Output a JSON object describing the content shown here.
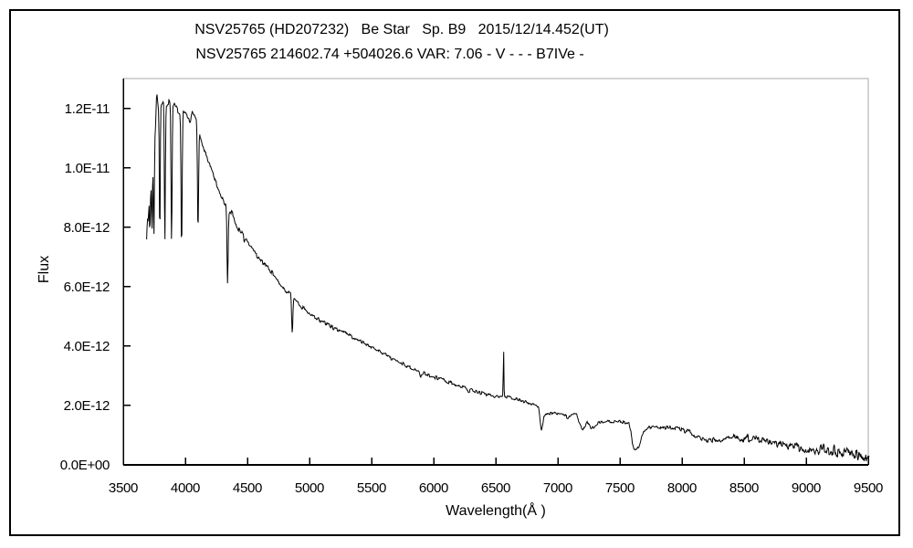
{
  "figure": {
    "title_line1": "NSV25765 (HD207232)   Be Star   Sp. B9   2015/12/14.452(UT)",
    "title_line2": "NSV25765 214602.74 +504026.6 VAR: 7.06 - V - - - B7IVe -"
  },
  "colors": {
    "background": "#ffffff",
    "axis": "#000000",
    "frame_gray": "#a8a8a8",
    "spectrum_line": "#000000",
    "outer_border": "#000000"
  },
  "chart_data": {
    "type": "line",
    "title": "NSV25765 (HD207232)   Be Star   Sp. B9   2015/12/14.452(UT)",
    "subtitle": "NSV25765 214602.74 +504026.6 VAR: 7.06 - V - - - B7IVe -",
    "xlabel": "Wavelength(Å )",
    "ylabel": "Flux",
    "grid": false,
    "legend": "none",
    "xlim": [
      3500,
      9500
    ],
    "ylim_flux": [
      0,
      1.3e-11
    ],
    "flux_unit_scale": 1e-12,
    "xticks": [
      3500,
      4000,
      4500,
      5000,
      5500,
      6000,
      6500,
      7000,
      7500,
      8000,
      8500,
      9000,
      9500
    ],
    "xtick_labels": [
      "3500",
      "4000",
      "4500",
      "5000",
      "5500",
      "6000",
      "6500",
      "7000",
      "7500",
      "8000",
      "8500",
      "9000",
      "9500"
    ],
    "yticks_flux": [
      0,
      2e-12,
      4e-12,
      6e-12,
      8e-12,
      1e-11,
      1.2e-11
    ],
    "ytick_labels": [
      "0.0E+00",
      "2.0E-12",
      "4.0E-12",
      "6.0E-12",
      "8.0E-12",
      "1.0E-11",
      "1.2E-11"
    ],
    "series": [
      {
        "name": "spectrum",
        "color": "#000000",
        "wavelength_range": [
          3688,
          9508
        ],
        "sample_step_angstrom": 4,
        "continuum_points": [
          [
            3688,
            7.6
          ],
          [
            3695,
            8.4
          ],
          [
            3702,
            8.2
          ],
          [
            3710,
            8.9
          ],
          [
            3718,
            9.1
          ],
          [
            3726,
            9.4
          ],
          [
            3736,
            9.8
          ],
          [
            3748,
            10.5
          ],
          [
            3760,
            11.4
          ],
          [
            3770,
            12.5
          ],
          [
            3783,
            12.0
          ],
          [
            3796,
            12.1
          ],
          [
            3810,
            12.25
          ],
          [
            3824,
            12.3
          ],
          [
            3838,
            12.1
          ],
          [
            3852,
            12.15
          ],
          [
            3872,
            12.3
          ],
          [
            3892,
            12.1
          ],
          [
            3912,
            12.15
          ],
          [
            3932,
            12.0
          ],
          [
            3952,
            11.9
          ],
          [
            3975,
            11.9
          ],
          [
            4000,
            11.9
          ],
          [
            4020,
            11.7
          ],
          [
            4040,
            11.5
          ],
          [
            4058,
            11.9
          ],
          [
            4075,
            11.75
          ],
          [
            4100,
            11.55
          ],
          [
            4120,
            11.1
          ],
          [
            4145,
            10.7
          ],
          [
            4175,
            10.35
          ],
          [
            4200,
            10.05
          ],
          [
            4240,
            9.6
          ],
          [
            4280,
            9.15
          ],
          [
            4320,
            8.8
          ],
          [
            4345,
            8.6
          ],
          [
            4380,
            8.45
          ],
          [
            4420,
            8.0
          ],
          [
            4460,
            7.8
          ],
          [
            4500,
            7.55
          ],
          [
            4540,
            7.25
          ],
          [
            4580,
            7.0
          ],
          [
            4620,
            6.8
          ],
          [
            4660,
            6.65
          ],
          [
            4700,
            6.45
          ],
          [
            4740,
            6.25
          ],
          [
            4780,
            6.0
          ],
          [
            4820,
            5.8
          ],
          [
            4861,
            5.75
          ],
          [
            4880,
            5.6
          ],
          [
            4910,
            5.45
          ],
          [
            4940,
            5.3
          ],
          [
            4970,
            5.2
          ],
          [
            5000,
            5.08
          ],
          [
            5050,
            4.95
          ],
          [
            5100,
            4.85
          ],
          [
            5150,
            4.72
          ],
          [
            5200,
            4.6
          ],
          [
            5250,
            4.5
          ],
          [
            5300,
            4.4
          ],
          [
            5350,
            4.28
          ],
          [
            5400,
            4.18
          ],
          [
            5450,
            4.08
          ],
          [
            5500,
            3.95
          ],
          [
            5550,
            3.85
          ],
          [
            5600,
            3.73
          ],
          [
            5650,
            3.6
          ],
          [
            5700,
            3.5
          ],
          [
            5750,
            3.4
          ],
          [
            5800,
            3.28
          ],
          [
            5840,
            3.22
          ],
          [
            5876,
            3.16
          ],
          [
            5886,
            3.1
          ],
          [
            5893,
            2.95
          ],
          [
            5902,
            3.08
          ],
          [
            5920,
            3.08
          ],
          [
            5960,
            3.02
          ],
          [
            6000,
            2.97
          ],
          [
            6050,
            2.9
          ],
          [
            6100,
            2.82
          ],
          [
            6150,
            2.74
          ],
          [
            6200,
            2.66
          ],
          [
            6250,
            2.6
          ],
          [
            6270,
            2.57
          ],
          [
            6283,
            2.45
          ],
          [
            6296,
            2.54
          ],
          [
            6350,
            2.46
          ],
          [
            6400,
            2.4
          ],
          [
            6450,
            2.35
          ],
          [
            6500,
            2.3
          ],
          [
            6558,
            2.3
          ],
          [
            6570,
            2.32
          ],
          [
            6600,
            2.28
          ],
          [
            6650,
            2.23
          ],
          [
            6700,
            2.18
          ],
          [
            6750,
            2.1
          ],
          [
            6800,
            2.02
          ],
          [
            6845,
            1.96
          ],
          [
            6858,
            1.5
          ],
          [
            6868,
            1.12
          ],
          [
            6878,
            1.32
          ],
          [
            6888,
            1.6
          ],
          [
            6900,
            1.7
          ],
          [
            6920,
            1.74
          ],
          [
            6945,
            1.73
          ],
          [
            6965,
            1.78
          ],
          [
            6985,
            1.74
          ],
          [
            7010,
            1.73
          ],
          [
            7040,
            1.7
          ],
          [
            7070,
            1.62
          ],
          [
            7085,
            1.57
          ],
          [
            7100,
            1.68
          ],
          [
            7130,
            1.7
          ],
          [
            7152,
            1.68
          ],
          [
            7168,
            1.44
          ],
          [
            7185,
            1.3
          ],
          [
            7205,
            1.18
          ],
          [
            7222,
            1.3
          ],
          [
            7235,
            1.42
          ],
          [
            7252,
            1.36
          ],
          [
            7268,
            1.22
          ],
          [
            7285,
            1.26
          ],
          [
            7305,
            1.34
          ],
          [
            7330,
            1.42
          ],
          [
            7360,
            1.45
          ],
          [
            7400,
            1.46
          ],
          [
            7450,
            1.45
          ],
          [
            7500,
            1.44
          ],
          [
            7545,
            1.43
          ],
          [
            7572,
            1.4
          ],
          [
            7588,
            1.1
          ],
          [
            7600,
            0.72
          ],
          [
            7612,
            0.54
          ],
          [
            7628,
            0.5
          ],
          [
            7645,
            0.55
          ],
          [
            7660,
            0.68
          ],
          [
            7675,
            0.9
          ],
          [
            7692,
            1.12
          ],
          [
            7710,
            1.22
          ],
          [
            7740,
            1.26
          ],
          [
            7780,
            1.28
          ],
          [
            7820,
            1.27
          ],
          [
            7860,
            1.25
          ],
          [
            7900,
            1.24
          ],
          [
            7950,
            1.22
          ],
          [
            8000,
            1.19
          ],
          [
            8040,
            1.14
          ],
          [
            8080,
            1.06
          ],
          [
            8120,
            0.98
          ],
          [
            8160,
            0.88
          ],
          [
            8195,
            0.8
          ],
          [
            8230,
            0.84
          ],
          [
            8270,
            0.86
          ],
          [
            8310,
            0.84
          ],
          [
            8350,
            0.85
          ],
          [
            8390,
            0.9
          ],
          [
            8425,
            0.94
          ],
          [
            8460,
            0.9
          ],
          [
            8510,
            0.88
          ],
          [
            8560,
            0.88
          ],
          [
            8610,
            0.86
          ],
          [
            8660,
            0.84
          ],
          [
            8710,
            0.8
          ],
          [
            8760,
            0.74
          ],
          [
            8810,
            0.68
          ],
          [
            8860,
            0.64
          ],
          [
            8910,
            0.6
          ],
          [
            8960,
            0.57
          ],
          [
            9010,
            0.56
          ],
          [
            9060,
            0.54
          ],
          [
            9110,
            0.51
          ],
          [
            9160,
            0.49
          ],
          [
            9210,
            0.47
          ],
          [
            9260,
            0.47
          ],
          [
            9310,
            0.46
          ],
          [
            9360,
            0.44
          ],
          [
            9410,
            0.42
          ],
          [
            9460,
            0.38
          ],
          [
            9485,
            0.3
          ],
          [
            9500,
            0.42
          ],
          [
            9508,
            0.5
          ]
        ],
        "absorption_lines": [
          {
            "center": 3714,
            "depth": 1.2,
            "sigma": 3.5
          },
          {
            "center": 3731,
            "depth": 1.8,
            "sigma": 4
          },
          {
            "center": 3747,
            "depth": 2.8,
            "sigma": 4.5
          },
          {
            "center": 3794,
            "depth": 4.4,
            "sigma": 5
          },
          {
            "center": 3835,
            "depth": 4.7,
            "sigma": 5.5
          },
          {
            "center": 3889,
            "depth": 4.7,
            "sigma": 6
          },
          {
            "center": 3970,
            "depth": 4.65,
            "sigma": 6.5
          },
          {
            "center": 4102,
            "depth": 3.6,
            "sigma": 6.5
          },
          {
            "center": 4340,
            "depth": 2.6,
            "sigma": 6.5
          },
          {
            "center": 4474,
            "depth": 0.3,
            "sigma": 5
          },
          {
            "center": 4861,
            "depth": 1.3,
            "sigma": 7
          }
        ],
        "emission_lines": [
          {
            "center": 6563,
            "height": 1.58,
            "sigma": 3.5
          }
        ],
        "noise_amplitude_points": [
          [
            3688,
            0.3
          ],
          [
            3700,
            0.22
          ],
          [
            3730,
            0.15
          ],
          [
            3780,
            0.1
          ],
          [
            3900,
            0.09
          ],
          [
            4100,
            0.08
          ],
          [
            4400,
            0.07
          ],
          [
            4800,
            0.06
          ],
          [
            5200,
            0.055
          ],
          [
            5800,
            0.05
          ],
          [
            6400,
            0.045
          ],
          [
            6900,
            0.04
          ],
          [
            7400,
            0.045
          ],
          [
            7800,
            0.05
          ],
          [
            8100,
            0.07
          ],
          [
            8400,
            0.09
          ],
          [
            8700,
            0.11
          ],
          [
            9000,
            0.14
          ],
          [
            9200,
            0.17
          ],
          [
            9350,
            0.19
          ],
          [
            9510,
            0.26
          ]
        ]
      }
    ]
  }
}
